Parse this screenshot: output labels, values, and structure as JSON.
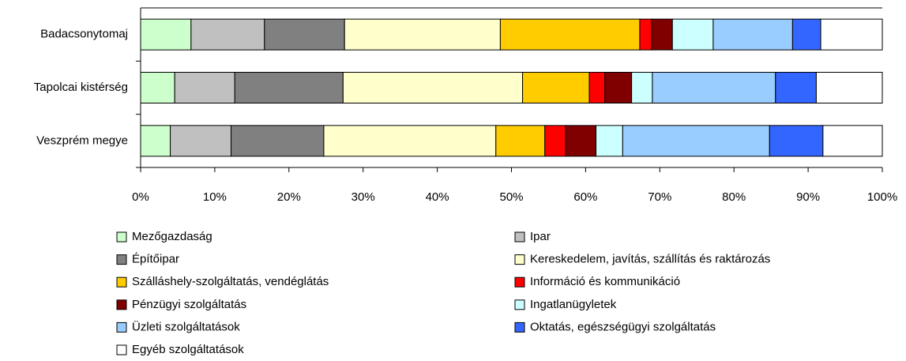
{
  "chart_data": {
    "type": "stacked-bar-horizontal",
    "categories": [
      "Badacsonytomaj",
      "Tapolcai kistérség",
      "Veszprém megye"
    ],
    "series": [
      {
        "name": "Mezőgazdaság",
        "color": "#ccffcc",
        "values": [
          6.8,
          4.6,
          4.0
        ]
      },
      {
        "name": "Ipar",
        "color": "#c0c0c0",
        "values": [
          9.9,
          8.1,
          8.2
        ]
      },
      {
        "name": "Építőipar",
        "color": "#808080",
        "values": [
          10.8,
          14.6,
          12.5
        ]
      },
      {
        "name": "Kereskedelem, javítás, szállítás és raktározás",
        "color": "#ffffcc",
        "values": [
          21.0,
          24.2,
          23.2
        ]
      },
      {
        "name": "Szálláshely-szolgáltatás, vendéglátás",
        "color": "#ffcc00",
        "values": [
          18.8,
          9.0,
          6.6
        ]
      },
      {
        "name": "Információ és kommunikáció",
        "color": "#ff0000",
        "values": [
          1.6,
          2.1,
          2.8
        ]
      },
      {
        "name": "Pénzügyi szolgáltatás",
        "color": "#800000",
        "values": [
          2.8,
          3.6,
          4.1
        ]
      },
      {
        "name": "Ingatlanügyletek",
        "color": "#ccffff",
        "values": [
          5.5,
          2.8,
          3.6
        ]
      },
      {
        "name": "Üzleti szolgáltatások",
        "color": "#99ccff",
        "values": [
          10.7,
          16.6,
          19.8
        ]
      },
      {
        "name": "Oktatás, egészségügyi szolgáltatás",
        "color": "#3366ff",
        "values": [
          3.8,
          5.5,
          7.2
        ]
      },
      {
        "name": "Egyéb szolgáltatások",
        "color": "#ffffff",
        "values": [
          8.3,
          8.9,
          8.0
        ]
      }
    ],
    "xlim": [
      0,
      100
    ],
    "xticks": [
      {
        "value": 0,
        "label": "0%"
      },
      {
        "value": 10,
        "label": "10%"
      },
      {
        "value": 20,
        "label": "20%"
      },
      {
        "value": 30,
        "label": "30%"
      },
      {
        "value": 40,
        "label": "40%"
      },
      {
        "value": 50,
        "label": "50%"
      },
      {
        "value": 60,
        "label": "60%"
      },
      {
        "value": 70,
        "label": "70%"
      },
      {
        "value": 80,
        "label": "80%"
      },
      {
        "value": 90,
        "label": "90%"
      },
      {
        "value": 100,
        "label": "100%"
      }
    ]
  }
}
